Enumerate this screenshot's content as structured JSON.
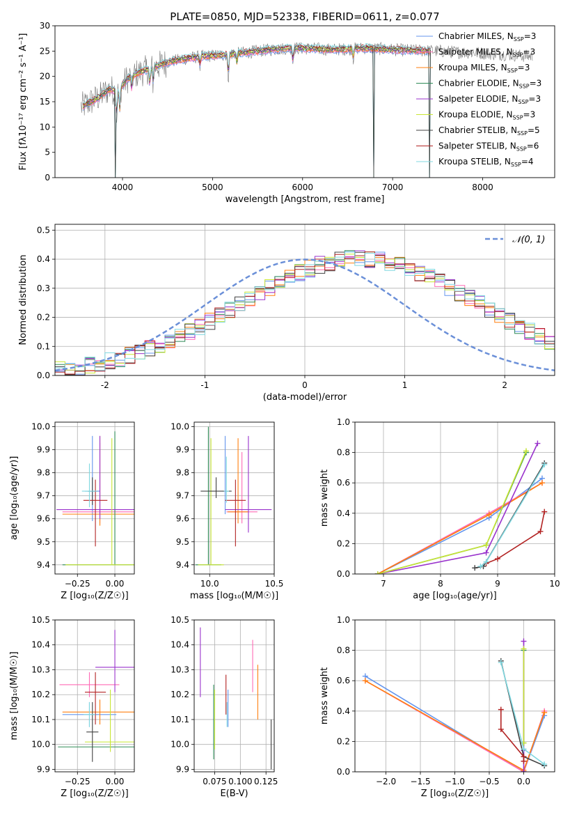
{
  "figure": {
    "title": "PLATE=0850, MJD=52338, FIBERID=0611, z=0.077",
    "colors": {
      "chabrier_miles": "#6495ed",
      "salpeter_miles": "#ff69b4",
      "kroupa_miles": "#ff7f0e",
      "chabrier_elodie": "#2e8b57",
      "salpeter_elodie": "#9932cc",
      "kroupa_elodie": "#c8e632",
      "chabrier_stelib": "#404040",
      "salpeter_stelib": "#b22222",
      "kroupa_stelib": "#80d8e0"
    }
  },
  "chart_data": [
    {
      "id": "spectrum",
      "type": "line",
      "title": "PLATE=0850, MJD=52338, FIBERID=0611, z=0.077",
      "xlabel": "wavelength [Angstrom, rest frame]",
      "ylabel": "Flux [fλ10⁻¹⁷ erg cm⁻² s⁻¹ A⁻¹]",
      "xlim": [
        3250,
        8800
      ],
      "ylim": [
        0,
        30
      ],
      "xticks": [
        4000,
        5000,
        6000,
        7000,
        8000
      ],
      "yticks": [
        0,
        5,
        10,
        15,
        20,
        25,
        30
      ],
      "legend_position": "right",
      "legend": [
        {
          "key": "chabrier_miles",
          "label": "Chabrier MILES, N",
          "sub": "SSP",
          "suffix": "=3"
        },
        {
          "key": "salpeter_miles",
          "label": "Salpeter MILES, N",
          "sub": "SSP",
          "suffix": "=3"
        },
        {
          "key": "kroupa_miles",
          "label": "Kroupa MILES, N",
          "sub": "SSP",
          "suffix": "=3"
        },
        {
          "key": "chabrier_elodie",
          "label": "Chabrier ELODIE, N",
          "sub": "SSP",
          "suffix": "=3"
        },
        {
          "key": "salpeter_elodie",
          "label": "Salpeter ELODIE, N",
          "sub": "SSP",
          "suffix": "=3"
        },
        {
          "key": "kroupa_elodie",
          "label": "Kroupa ELODIE, N",
          "sub": "SSP",
          "suffix": "=3"
        },
        {
          "key": "chabrier_stelib",
          "label": "Chabrier STELIB, N",
          "sub": "SSP",
          "suffix": "=5"
        },
        {
          "key": "salpeter_stelib",
          "label": "Salpeter STELIB, N",
          "sub": "SSP",
          "suffix": "=6"
        },
        {
          "key": "kroupa_stelib",
          "label": "Kroupa STELIB, N",
          "sub": "SSP",
          "suffix": "=4"
        }
      ],
      "continuum": {
        "x": [
          3550,
          3650,
          3750,
          3850,
          3950,
          4050,
          4150,
          4300,
          4500,
          4700,
          4900,
          5100,
          5300,
          5500,
          5700,
          5900,
          6100,
          6300,
          6500,
          6700,
          6900,
          7100,
          7300,
          7500,
          7700,
          7900,
          8100,
          8300,
          8500
        ],
        "y": [
          14,
          15,
          16,
          17.5,
          17,
          19.5,
          20.5,
          21.5,
          22.8,
          23.5,
          24.0,
          24.2,
          24.6,
          25.0,
          25.4,
          25.6,
          25.5,
          25.3,
          25.4,
          25.6,
          25.4,
          25.2,
          25.1,
          25.0,
          24.8,
          24.7,
          24.5,
          24.3,
          24.0
        ]
      },
      "absorption_features": [
        {
          "x": 3934,
          "depth": 6
        },
        {
          "x": 3969,
          "depth": 5
        },
        {
          "x": 4102,
          "depth": 3
        },
        {
          "x": 4304,
          "depth": 4
        },
        {
          "x": 4340,
          "depth": 3
        },
        {
          "x": 4861,
          "depth": 2
        },
        {
          "x": 5175,
          "depth": 5
        },
        {
          "x": 5270,
          "depth": 2
        },
        {
          "x": 5893,
          "depth": 3
        },
        {
          "x": 6563,
          "depth": 2
        }
      ],
      "model_dropouts": [
        {
          "x": 3920,
          "y": 0
        },
        {
          "x": 6790,
          "y": 0
        },
        {
          "x": 7410,
          "y": 0
        }
      ]
    },
    {
      "id": "residuals",
      "type": "line",
      "xlabel": "(data-model)/error",
      "ylabel": "Normed distribution",
      "xlim": [
        -2.5,
        2.5
      ],
      "ylim": [
        0,
        0.52
      ],
      "xticks": [
        -2,
        -1,
        0,
        1,
        2
      ],
      "yticks": [
        0.0,
        0.1,
        0.2,
        0.3,
        0.4,
        0.5
      ],
      "reference": {
        "label": "𝒩(0, 1)",
        "mean": 0,
        "sigma": 1
      },
      "legend_position": "top-right",
      "bin_width": 0.1,
      "bin_start": -2.5,
      "base_profile": [
        0.018,
        0.022,
        0.027,
        0.033,
        0.04,
        0.048,
        0.058,
        0.068,
        0.08,
        0.092,
        0.105,
        0.12,
        0.136,
        0.152,
        0.17,
        0.188,
        0.207,
        0.226,
        0.245,
        0.265,
        0.284,
        0.303,
        0.321,
        0.338,
        0.354,
        0.368,
        0.38,
        0.39,
        0.397,
        0.401,
        0.402,
        0.401,
        0.397,
        0.39,
        0.38,
        0.368,
        0.354,
        0.338,
        0.321,
        0.303,
        0.284,
        0.265,
        0.245,
        0.226,
        0.207,
        0.188,
        0.17,
        0.152,
        0.136,
        0.12,
        0.105
      ]
    },
    {
      "id": "age_vs_z",
      "type": "scatter",
      "xlabel": "Z [log₁₀(Z/Z☉)]",
      "ylabel": "age  [log₁₀(age/yr)]",
      "xlim": [
        -0.4,
        0.13
      ],
      "ylim": [
        9.36,
        10.02
      ],
      "xticks": [
        -0.25,
        0.0
      ],
      "xticklabels": [
        "−0.25",
        "0.00"
      ],
      "yticks": [
        9.4,
        9.5,
        9.6,
        9.7,
        9.8,
        9.9,
        10.0
      ],
      "points": [
        {
          "key": "chabrier_miles",
          "x": -0.15,
          "y": 9.72,
          "xerr": 0.05,
          "yerr": [
            0.13,
            0.24
          ]
        },
        {
          "key": "salpeter_miles",
          "x": -0.1,
          "y": 9.63,
          "xerr": 0.25,
          "yerr": [
            0.05,
            0.3
          ]
        },
        {
          "key": "kroupa_miles",
          "x": -0.1,
          "y": 9.62,
          "xerr": 0.25,
          "yerr": [
            0.05,
            0.34
          ]
        },
        {
          "key": "chabrier_elodie",
          "x": 0.0,
          "y": 9.4,
          "xerr": 0.35,
          "yerr": [
            0.0,
            0.58
          ]
        },
        {
          "key": "salpeter_elodie",
          "x": -0.1,
          "y": 9.64,
          "xerr": 0.29,
          "yerr": [
            0.04,
            0.32
          ]
        },
        {
          "key": "kroupa_elodie",
          "x": -0.02,
          "y": 9.4,
          "xerr": 0.31,
          "yerr": [
            0.0,
            0.55
          ]
        },
        {
          "key": "chabrier_stelib",
          "x": -0.15,
          "y": 9.72,
          "xerr": 0.03,
          "yerr": [
            0.06,
            0.06
          ]
        },
        {
          "key": "salpeter_stelib",
          "x": -0.13,
          "y": 9.68,
          "xerr": 0.08,
          "yerr": [
            0.2,
            0.09
          ]
        },
        {
          "key": "kroupa_stelib",
          "x": -0.17,
          "y": 9.72,
          "xerr": 0.05,
          "yerr": [
            0.07,
            0.12
          ]
        }
      ]
    },
    {
      "id": "age_vs_mass",
      "type": "scatter",
      "xlabel": "mass [log₁₀(M/M☉)]",
      "ylabel": "",
      "xlim": [
        9.88,
        10.5
      ],
      "ylim": [
        9.36,
        10.02
      ],
      "xticks": [
        10.0,
        10.5
      ],
      "xticklabels": [
        "10.0",
        "10.5"
      ],
      "yticks": [
        9.4,
        9.5,
        9.6,
        9.7,
        9.8,
        9.9,
        10.0
      ],
      "points": [
        {
          "key": "chabrier_miles",
          "x": 10.12,
          "y": 9.72,
          "xerr": 0.02,
          "yerr": [
            0.1,
            0.24
          ]
        },
        {
          "key": "salpeter_miles",
          "x": 10.25,
          "y": 9.63,
          "xerr": 0.12,
          "yerr": [
            0.05,
            0.26
          ]
        },
        {
          "key": "kroupa_miles",
          "x": 10.22,
          "y": 9.63,
          "xerr": 0.08,
          "yerr": [
            0.05,
            0.32
          ]
        },
        {
          "key": "chabrier_elodie",
          "x": 9.99,
          "y": 9.4,
          "xerr": 0.1,
          "yerr": [
            0.0,
            0.6
          ]
        },
        {
          "key": "salpeter_elodie",
          "x": 10.3,
          "y": 9.64,
          "xerr": 0.18,
          "yerr": [
            0.1,
            0.32
          ]
        },
        {
          "key": "kroupa_elodie",
          "x": 10.01,
          "y": 9.4,
          "xerr": 0.1,
          "yerr": [
            0.0,
            0.55
          ]
        },
        {
          "key": "chabrier_stelib",
          "x": 10.05,
          "y": 9.72,
          "xerr": 0.12,
          "yerr": [
            0.03,
            0.06
          ]
        },
        {
          "key": "salpeter_stelib",
          "x": 10.2,
          "y": 9.68,
          "xerr": 0.08,
          "yerr": [
            0.2,
            0.09
          ]
        },
        {
          "key": "kroupa_stelib",
          "x": 10.13,
          "y": 9.72,
          "xerr": 0.02,
          "yerr": [
            0.05,
            0.15
          ]
        }
      ]
    },
    {
      "id": "mass_weight_vs_age",
      "type": "line",
      "xlabel": "age  [log₁₀(age/yr)]",
      "ylabel": "mass weight",
      "xlim": [
        6.5,
        10.0
      ],
      "ylim": [
        0,
        1
      ],
      "xticks": [
        7,
        8,
        9,
        10
      ],
      "yticks": [
        0.0,
        0.2,
        0.4,
        0.6,
        0.8,
        1.0
      ],
      "series": [
        {
          "key": "chabrier_miles",
          "x": [
            6.9,
            8.85,
            9.78
          ],
          "y": [
            0.0,
            0.37,
            0.63
          ]
        },
        {
          "key": "salpeter_miles",
          "x": [
            6.9,
            8.85,
            9.78
          ],
          "y": [
            0.0,
            0.4,
            0.6
          ]
        },
        {
          "key": "kroupa_miles",
          "x": [
            6.9,
            8.85,
            9.78
          ],
          "y": [
            0.0,
            0.39,
            0.6
          ]
        },
        {
          "key": "chabrier_elodie",
          "x": [
            6.9,
            8.8,
            9.5
          ],
          "y": [
            0.0,
            0.19,
            0.8
          ]
        },
        {
          "key": "salpeter_elodie",
          "x": [
            6.9,
            8.8,
            9.7
          ],
          "y": [
            0.0,
            0.14,
            0.86
          ]
        },
        {
          "key": "kroupa_elodie",
          "x": [
            6.9,
            8.8,
            9.5
          ],
          "y": [
            0.0,
            0.19,
            0.81
          ]
        },
        {
          "key": "chabrier_stelib",
          "x": [
            8.6,
            8.75,
            9.82
          ],
          "y": [
            0.04,
            0.05,
            0.73
          ]
        },
        {
          "key": "salpeter_stelib",
          "x": [
            8.8,
            9.0,
            9.75,
            9.82
          ],
          "y": [
            0.07,
            0.1,
            0.28,
            0.41
          ]
        },
        {
          "key": "kroupa_stelib",
          "x": [
            8.7,
            8.8,
            9.82
          ],
          "y": [
            0.05,
            0.08,
            0.72
          ]
        }
      ]
    },
    {
      "id": "mass_vs_z",
      "type": "scatter",
      "xlabel": "Z [log₁₀(Z/Z☉)]",
      "ylabel": "mass [log₁₀(M/M☉)]",
      "xlim": [
        -0.4,
        0.13
      ],
      "ylim": [
        9.89,
        10.5
      ],
      "xticks": [
        -0.25,
        0.0
      ],
      "xticklabels": [
        "−0.25",
        "0.00"
      ],
      "yticks": [
        9.9,
        10.0,
        10.1,
        10.2,
        10.3,
        10.4,
        10.5
      ],
      "points": [
        {
          "key": "chabrier_miles",
          "x": -0.17,
          "y": 10.12,
          "xerr": 0.18,
          "yerr": [
            0.05,
            0.05
          ]
        },
        {
          "key": "salpeter_miles",
          "x": -0.17,
          "y": 10.24,
          "xerr": 0.2,
          "yerr": [
            0.05,
            0.05
          ]
        },
        {
          "key": "kroupa_miles",
          "x": -0.1,
          "y": 10.13,
          "xerr": 0.25,
          "yerr": [
            0.05,
            0.05
          ]
        },
        {
          "key": "chabrier_elodie",
          "x": -0.1,
          "y": 9.99,
          "xerr": 0.28,
          "yerr": [
            0.0,
            0.0
          ]
        },
        {
          "key": "salpeter_elodie",
          "x": 0.0,
          "y": 10.31,
          "xerr": 0.13,
          "yerr": [
            0.1,
            0.15
          ]
        },
        {
          "key": "kroupa_elodie",
          "x": -0.03,
          "y": 10.01,
          "xerr": 0.17,
          "yerr": [
            0.04,
            0.21
          ]
        },
        {
          "key": "chabrier_stelib",
          "x": -0.15,
          "y": 10.05,
          "xerr": 0.04,
          "yerr": [
            0.12,
            0.12
          ]
        },
        {
          "key": "salpeter_stelib",
          "x": -0.13,
          "y": 10.21,
          "xerr": 0.07,
          "yerr": [
            0.13,
            0.08
          ]
        },
        {
          "key": "kroupa_stelib",
          "x": -0.17,
          "y": 10.12,
          "xerr": 0.04,
          "yerr": [
            0.05,
            0.05
          ]
        }
      ]
    },
    {
      "id": "mass_vs_ebv",
      "type": "scatter",
      "xlabel": "E(B-V)",
      "ylabel": "",
      "xlim": [
        0.055,
        0.133
      ],
      "ylim": [
        9.89,
        10.5
      ],
      "xticks": [
        0.075,
        0.1,
        0.125
      ],
      "xticklabels": [
        "0.075",
        "0.100",
        "0.125"
      ],
      "yticks": [
        9.9,
        10.0,
        10.1,
        10.2,
        10.3,
        10.4,
        10.5
      ],
      "points": [
        {
          "key": "chabrier_miles",
          "x": 0.088,
          "y": 10.12,
          "xerr": 0.0,
          "yerr": [
            0.05,
            0.1
          ]
        },
        {
          "key": "salpeter_miles",
          "x": 0.112,
          "y": 10.31,
          "xerr": 0.0,
          "yerr": [
            0.1,
            0.11
          ]
        },
        {
          "key": "kroupa_miles",
          "x": 0.117,
          "y": 10.21,
          "xerr": 0.0,
          "yerr": [
            0.11,
            0.11
          ]
        },
        {
          "key": "chabrier_elodie",
          "x": 0.074,
          "y": 10.1,
          "xerr": 0.0,
          "yerr": [
            0.16,
            0.14
          ]
        },
        {
          "key": "salpeter_elodie",
          "x": 0.061,
          "y": 10.33,
          "xerr": 0.0,
          "yerr": [
            0.14,
            0.14
          ]
        },
        {
          "key": "kroupa_elodie",
          "x": 0.075,
          "y": 10.08,
          "xerr": 0.0,
          "yerr": [
            0.1,
            0.14
          ]
        },
        {
          "key": "chabrier_stelib",
          "x": 0.13,
          "y": 10.0,
          "xerr": 0.0,
          "yerr": [
            0.1,
            0.1
          ]
        },
        {
          "key": "salpeter_stelib",
          "x": 0.086,
          "y": 10.22,
          "xerr": 0.0,
          "yerr": [
            0.1,
            0.06
          ]
        },
        {
          "key": "kroupa_stelib",
          "x": 0.087,
          "y": 10.12,
          "xerr": 0.0,
          "yerr": [
            0.05,
            0.05
          ]
        }
      ]
    },
    {
      "id": "mass_weight_vs_z",
      "type": "line",
      "xlabel": "Z [log₁₀(Z/Z☉)]",
      "ylabel": "mass weight",
      "xlim": [
        -2.45,
        0.45
      ],
      "ylim": [
        0,
        1
      ],
      "xticks": [
        -2.0,
        -1.5,
        -1.0,
        -0.5,
        0.0
      ],
      "xticklabels": [
        "−2.0",
        "−1.5",
        "−1.0",
        "−0.5",
        "0.0"
      ],
      "yticks": [
        0.0,
        0.2,
        0.4,
        0.6,
        0.8,
        1.0
      ],
      "series": [
        {
          "key": "chabrier_miles",
          "x": [
            -2.3,
            0.0,
            0.3
          ],
          "y": [
            0.63,
            0.0,
            0.37
          ]
        },
        {
          "key": "salpeter_miles",
          "x": [
            -2.3,
            0.0,
            0.3
          ],
          "y": [
            0.6,
            0.0,
            0.4
          ]
        },
        {
          "key": "kroupa_miles",
          "x": [
            -2.3,
            0.0,
            0.3
          ],
          "y": [
            0.6,
            0.01,
            0.39
          ]
        },
        {
          "key": "chabrier_elodie",
          "x": [
            0.0,
            0.0
          ],
          "y": [
            0.19,
            0.8
          ]
        },
        {
          "key": "salpeter_elodie",
          "x": [
            0.0,
            0.0,
            0.0
          ],
          "y": [
            0.0,
            0.14,
            0.86
          ]
        },
        {
          "key": "kroupa_elodie",
          "x": [
            0.0,
            0.0
          ],
          "y": [
            0.19,
            0.81
          ]
        },
        {
          "key": "chabrier_stelib",
          "x": [
            -0.33,
            0.0,
            0.3
          ],
          "y": [
            0.73,
            0.1,
            0.04
          ]
        },
        {
          "key": "salpeter_stelib",
          "x": [
            -0.33,
            -0.33,
            0.0,
            0.0
          ],
          "y": [
            0.41,
            0.28,
            0.1,
            0.07
          ]
        },
        {
          "key": "kroupa_stelib",
          "x": [
            -0.33,
            0.0,
            0.3
          ],
          "y": [
            0.72,
            0.15,
            0.05
          ]
        }
      ]
    }
  ]
}
